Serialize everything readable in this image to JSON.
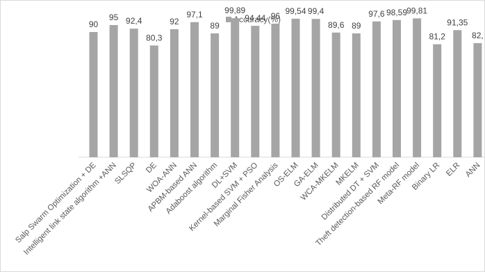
{
  "chart_data": {
    "type": "bar",
    "legend": {
      "label": "Accuracy(%)",
      "position": "top-center"
    },
    "series": [
      {
        "name": "Accuracy(%)",
        "color": "#a5a5a5",
        "values": [
          90,
          95,
          92.4,
          80.3,
          92,
          97.1,
          89,
          99.89,
          94.44,
          96,
          99.54,
          99.4,
          89.6,
          89,
          97.6,
          98.59,
          99.81,
          81.2,
          91.35,
          82
        ]
      }
    ],
    "categories": [
      "Salp Swarm Optimization + DE",
      "Intelligent link state algorithm +ANN",
      "SLSQP",
      "DE",
      "WOA-ANN",
      "APBM-based ANN",
      "Adaboost algorithm",
      "DL+SVM",
      "Kernel-based SVM + PSO",
      "Marginal Fisher Analysis",
      "OS-ELM",
      "GA-ELM",
      "WCA-MKELM",
      "MKELM",
      "Distributed DT + SVM",
      "Theft detection-based RF model",
      "Meta-RF model",
      "Binary LR",
      "ELR",
      "ANN"
    ],
    "data_labels": [
      "90",
      "95",
      "92,4",
      "80,3",
      "92",
      "97,1",
      "89",
      "99,89",
      "94,44",
      "96",
      "99,54",
      "99,4",
      "89,6",
      "89",
      "97,6",
      "98,59",
      "99,81",
      "81,2",
      "91,35",
      "82,"
    ],
    "ylim": [
      0,
      100
    ],
    "grid": false,
    "axis_line_color": "#d9d9d9"
  }
}
